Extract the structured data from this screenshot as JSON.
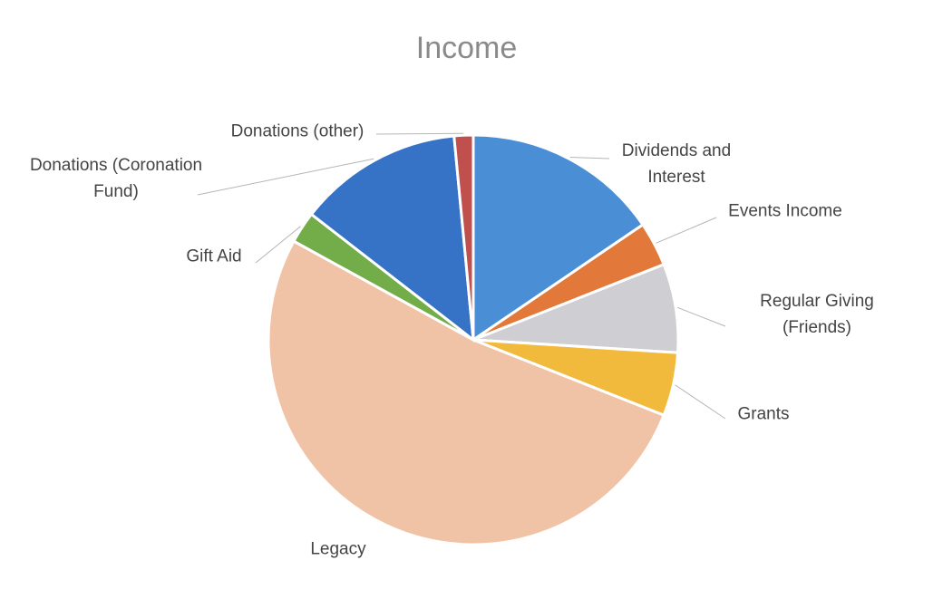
{
  "chart_data": {
    "type": "pie",
    "title": "Income",
    "categories": [
      "Dividends and Interest",
      "Events Income",
      "Regular Giving (Friends)",
      "Grants",
      "Legacy",
      "Gift Aid",
      "Donations (Coronation Fund)",
      "Donations (other)"
    ],
    "values": [
      15.5,
      3.5,
      7,
      5,
      52,
      2.5,
      13,
      1.5
    ],
    "colors": [
      "#4a8fd6",
      "#e2793a",
      "#cfcfd3",
      "#f2ba3c",
      "#f1c3a6",
      "#72ad4a",
      "#3673c6",
      "#c0504d"
    ]
  }
}
